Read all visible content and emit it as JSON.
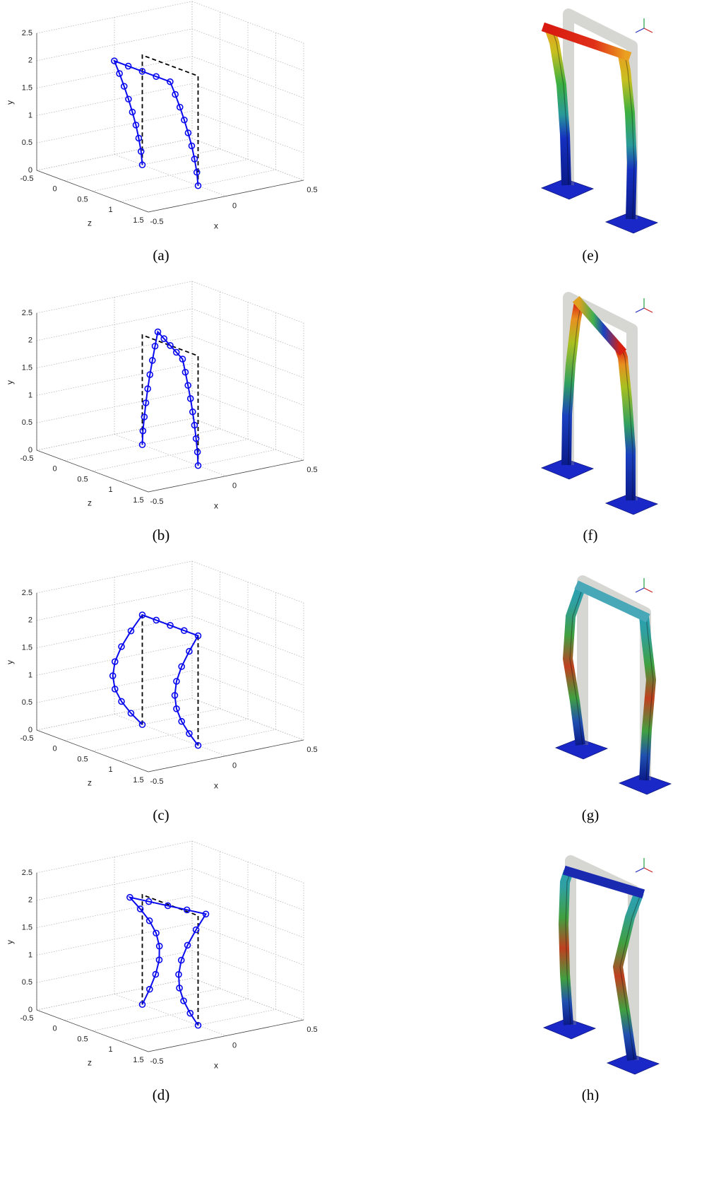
{
  "chart_data": [
    {
      "type": "line3d",
      "caption": "(a)",
      "xlabel": "x",
      "ylabel": "y",
      "zlabel": "z",
      "xlim": [
        -0.5,
        0.5
      ],
      "ylim": [
        0,
        2.5
      ],
      "zlim": [
        -0.5,
        1.5
      ],
      "xticks": [
        -0.5,
        0,
        0.5
      ],
      "yticks": [
        0,
        0.5,
        1,
        1.5,
        2,
        2.5
      ],
      "zticks": [
        -0.5,
        0,
        0.5,
        1,
        1.5
      ],
      "grid": true,
      "color": "#0a0aee",
      "points": {
        "x": [
          0,
          -0.008,
          -0.023,
          -0.041,
          -0.064,
          -0.089,
          -0.117,
          -0.147,
          -0.18,
          -0.18,
          -0.18,
          -0.18,
          -0.18,
          -0.147,
          -0.117,
          -0.089,
          -0.064,
          -0.041,
          -0.023,
          -0.008,
          0
        ],
        "y": [
          0,
          0.25,
          0.5,
          0.75,
          1,
          1.25,
          1.5,
          1.75,
          2,
          2,
          2,
          2,
          2,
          1.75,
          1.5,
          1.25,
          1,
          0.75,
          0.5,
          0.25,
          0
        ],
        "z": [
          0,
          0,
          0,
          0,
          0,
          0,
          0,
          0,
          0,
          0.25,
          0.5,
          0.75,
          1,
          1,
          1,
          1,
          1,
          1,
          1,
          1,
          1
        ]
      },
      "reference": {
        "color": "#000000",
        "x": [
          0,
          0,
          0,
          0
        ],
        "y": [
          0,
          2,
          2,
          0
        ],
        "z": [
          0,
          0,
          1,
          1
        ]
      }
    },
    {
      "type": "line3d",
      "caption": "(b)",
      "xlabel": "x",
      "ylabel": "y",
      "zlabel": "z",
      "xlim": [
        -0.5,
        0.5
      ],
      "ylim": [
        0,
        2.5
      ],
      "zlim": [
        -0.5,
        1.5
      ],
      "xticks": [
        -0.5,
        0,
        0.5
      ],
      "yticks": [
        0,
        0.5,
        1,
        1.5,
        2,
        2.5
      ],
      "zticks": [
        -0.5,
        0,
        0.5,
        1,
        1.5
      ],
      "grid": true,
      "color": "#0a0aee",
      "points": {
        "x": [
          0,
          0.004,
          0.013,
          0.023,
          0.035,
          0.049,
          0.065,
          0.082,
          0.1,
          0.05,
          0,
          -0.05,
          -0.1,
          -0.082,
          -0.065,
          -0.049,
          -0.035,
          -0.023,
          -0.013,
          -0.004,
          0
        ],
        "y": [
          0,
          0.25,
          0.5,
          0.75,
          1,
          1.25,
          1.5,
          1.75,
          2,
          2,
          2,
          2,
          2,
          1.75,
          1.5,
          1.25,
          1,
          0.75,
          0.5,
          0.25,
          0
        ],
        "z": [
          0,
          0,
          0,
          0,
          0,
          0,
          0,
          0,
          0,
          0.25,
          0.5,
          0.75,
          1,
          1,
          1,
          1,
          1,
          1,
          1,
          1,
          1
        ]
      },
      "reference": {
        "color": "#000000",
        "x": [
          0,
          0,
          0,
          0
        ],
        "y": [
          0,
          2,
          2,
          0
        ],
        "z": [
          0,
          0,
          1,
          1
        ]
      }
    },
    {
      "type": "line3d",
      "caption": "(c)",
      "xlabel": "x",
      "ylabel": "y",
      "zlabel": "z",
      "xlim": [
        -0.5,
        0.5
      ],
      "ylim": [
        0,
        2.5
      ],
      "zlim": [
        -0.5,
        1.5
      ],
      "xticks": [
        -0.5,
        0,
        0.5
      ],
      "yticks": [
        0,
        0.5,
        1,
        1.5,
        2,
        2.5
      ],
      "zticks": [
        -0.5,
        0,
        0.5,
        1,
        1.5
      ],
      "grid": true,
      "color": "#0a0aee",
      "points": {
        "x": [
          0,
          -0.073,
          -0.134,
          -0.176,
          -0.19,
          -0.176,
          -0.134,
          -0.073,
          0,
          0,
          0,
          0,
          0,
          -0.057,
          -0.106,
          -0.139,
          -0.15,
          -0.139,
          -0.106,
          -0.057,
          0
        ],
        "y": [
          0,
          0.25,
          0.5,
          0.75,
          1,
          1.25,
          1.5,
          1.75,
          2,
          2,
          2,
          2,
          2,
          1.75,
          1.5,
          1.25,
          1,
          0.75,
          0.5,
          0.25,
          0
        ],
        "z": [
          0,
          0,
          0,
          0,
          0,
          0,
          0,
          0,
          0,
          0.25,
          0.5,
          0.75,
          1,
          1,
          1,
          1,
          1,
          1,
          1,
          1,
          1
        ]
      },
      "reference": {
        "color": "#000000",
        "x": [
          0,
          0,
          0,
          0
        ],
        "y": [
          0,
          2,
          2,
          0
        ],
        "z": [
          0,
          0,
          1,
          1
        ]
      }
    },
    {
      "type": "line3d",
      "caption": "(d)",
      "xlabel": "x",
      "ylabel": "y",
      "zlabel": "z",
      "xlim": [
        -0.5,
        0.5
      ],
      "ylim": [
        0,
        2.5
      ],
      "zlim": [
        -0.5,
        1.5
      ],
      "xticks": [
        -0.5,
        0,
        0.5
      ],
      "yticks": [
        0,
        0.5,
        1,
        1.5,
        2,
        2.5
      ],
      "zticks": [
        -0.5,
        0,
        0.5,
        1,
        1.5
      ],
      "grid": true,
      "color": "#0a0aee",
      "points": {
        "x": [
          0,
          0.047,
          0.086,
          0.109,
          0.11,
          0.089,
          0.046,
          -0.013,
          -0.08,
          -0.048,
          -0.015,
          0.018,
          0.05,
          -0.013,
          -0.068,
          -0.108,
          -0.125,
          -0.12,
          -0.093,
          -0.051,
          0
        ],
        "y": [
          0,
          0.25,
          0.5,
          0.75,
          1,
          1.25,
          1.5,
          1.75,
          2,
          2,
          2,
          2,
          2,
          1.75,
          1.5,
          1.25,
          1,
          0.75,
          0.5,
          0.25,
          0
        ],
        "z": [
          0,
          0,
          0,
          0,
          0,
          0,
          0,
          0,
          0,
          0.25,
          0.5,
          0.75,
          1,
          1,
          1,
          1,
          1,
          1,
          1,
          1,
          1
        ]
      },
      "reference": {
        "color": "#000000",
        "x": [
          0,
          0,
          0,
          0
        ],
        "y": [
          0,
          2,
          2,
          0
        ],
        "z": [
          0,
          0,
          1,
          1
        ]
      }
    }
  ],
  "renderings": [
    {
      "caption": "(e)"
    },
    {
      "caption": "(f)"
    },
    {
      "caption": "(g)"
    },
    {
      "caption": "(h)"
    }
  ]
}
